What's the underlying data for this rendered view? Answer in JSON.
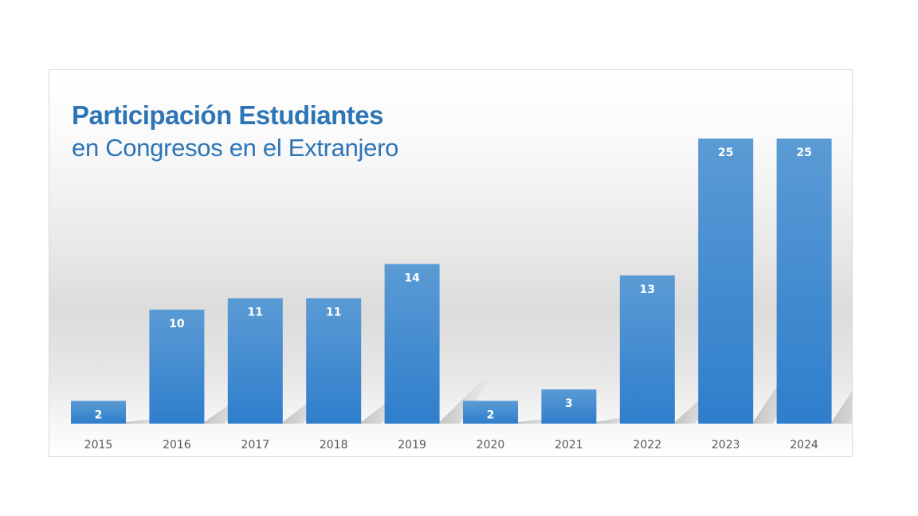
{
  "chart_data": {
    "type": "bar",
    "title": "Participación Estudiantes",
    "subtitle": "en Congresos en el Extranjero",
    "xlabel": "",
    "ylabel": "",
    "categories": [
      "2015",
      "2016",
      "2017",
      "2018",
      "2019",
      "2020",
      "2021",
      "2022",
      "2023",
      "2024"
    ],
    "values": [
      2,
      10,
      11,
      11,
      14,
      2,
      3,
      13,
      25,
      25
    ],
    "ylim": [
      0,
      25
    ],
    "grid": false,
    "legend": "none",
    "data_labels": "inside-top",
    "colors": {
      "bar_top": "#5b9bd5",
      "bar_bottom": "#2f7ecc",
      "title": "#2e75b6",
      "tick_text": "#595959",
      "label_text": "#ffffff"
    }
  }
}
